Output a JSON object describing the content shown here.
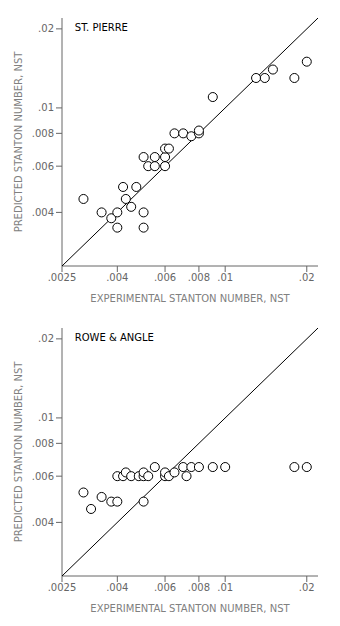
{
  "chart_data": [
    {
      "type": "scatter",
      "annotation": "ST. PIERRE",
      "x_label": "EXPERIMENTAL STANTON NUMBER, NST",
      "y_label": "PREDICTED STANTON NUMBER, NST",
      "log": true,
      "grid": false,
      "xlim": [
        0.0025,
        0.022
      ],
      "ylim": [
        0.0025,
        0.022
      ],
      "xticks": [
        {
          "value": 0.0025,
          "label": ".0025"
        },
        {
          "value": 0.004,
          "label": ".004"
        },
        {
          "value": 0.006,
          "label": ".006"
        },
        {
          "value": 0.008,
          "label": ".008"
        },
        {
          "value": 0.01,
          "label": ".01"
        },
        {
          "value": 0.02,
          "label": ".02"
        }
      ],
      "yticks": [
        {
          "value": 0.004,
          "label": ".004"
        },
        {
          "value": 0.006,
          "label": ".006"
        },
        {
          "value": 0.008,
          "label": ".008"
        },
        {
          "value": 0.01,
          "label": ".01"
        },
        {
          "value": 0.02,
          "label": ".02"
        }
      ],
      "series": [
        {
          "type": "line",
          "color": "black",
          "x": [
            0.0025,
            0.022
          ],
          "values": [
            0.0025,
            0.022
          ]
        },
        {
          "type": "scatter",
          "color": "black",
          "marker": "open_circle",
          "x": [
            0.003,
            0.0035,
            0.0038,
            0.004,
            0.004,
            0.0042,
            0.0043,
            0.0045,
            0.0047,
            0.005,
            0.005,
            0.005,
            0.0052,
            0.0055,
            0.0055,
            0.006,
            0.006,
            0.006,
            0.0062,
            0.0065,
            0.007,
            0.0075,
            0.008,
            0.008,
            0.009,
            0.013,
            0.014,
            0.015,
            0.018,
            0.02
          ],
          "values": [
            0.0045,
            0.004,
            0.0038,
            0.0035,
            0.004,
            0.005,
            0.0045,
            0.0042,
            0.005,
            0.0035,
            0.004,
            0.0065,
            0.006,
            0.006,
            0.0065,
            0.006,
            0.0065,
            0.007,
            0.007,
            0.008,
            0.008,
            0.0078,
            0.008,
            0.0082,
            0.011,
            0.013,
            0.013,
            0.014,
            0.013,
            0.015
          ]
        }
      ]
    },
    {
      "type": "scatter",
      "annotation": "ROWE & ANGLE",
      "x_label": "EXPERIMENTAL STANTON NUMBER, NST",
      "y_label": "PREDICTED STANTON NUMBER, NST",
      "log": true,
      "grid": false,
      "xlim": [
        0.0025,
        0.022
      ],
      "ylim": [
        0.0025,
        0.022
      ],
      "xticks": [
        {
          "value": 0.0025,
          "label": ".0025"
        },
        {
          "value": 0.004,
          "label": ".004"
        },
        {
          "value": 0.006,
          "label": ".006"
        },
        {
          "value": 0.008,
          "label": ".008"
        },
        {
          "value": 0.01,
          "label": ".01"
        },
        {
          "value": 0.02,
          "label": ".02"
        }
      ],
      "yticks": [
        {
          "value": 0.004,
          "label": ".004"
        },
        {
          "value": 0.006,
          "label": ".006"
        },
        {
          "value": 0.008,
          "label": ".008"
        },
        {
          "value": 0.01,
          "label": ".01"
        },
        {
          "value": 0.02,
          "label": ".02"
        }
      ],
      "series": [
        {
          "type": "line",
          "color": "black",
          "x": [
            0.0025,
            0.022
          ],
          "values": [
            0.0025,
            0.022
          ]
        },
        {
          "type": "scatter",
          "color": "black",
          "marker": "open_circle",
          "x": [
            0.003,
            0.0032,
            0.0035,
            0.0038,
            0.004,
            0.004,
            0.0042,
            0.0043,
            0.0045,
            0.0048,
            0.005,
            0.005,
            0.005,
            0.0052,
            0.0055,
            0.006,
            0.006,
            0.0062,
            0.0065,
            0.007,
            0.0072,
            0.0075,
            0.008,
            0.009,
            0.01,
            0.018,
            0.02
          ],
          "values": [
            0.0052,
            0.0045,
            0.005,
            0.0048,
            0.0048,
            0.006,
            0.006,
            0.0062,
            0.006,
            0.006,
            0.0048,
            0.006,
            0.0062,
            0.006,
            0.0065,
            0.006,
            0.0062,
            0.006,
            0.0062,
            0.0065,
            0.006,
            0.0065,
            0.0065,
            0.0065,
            0.0065,
            0.0065,
            0.0065
          ]
        }
      ]
    }
  ]
}
